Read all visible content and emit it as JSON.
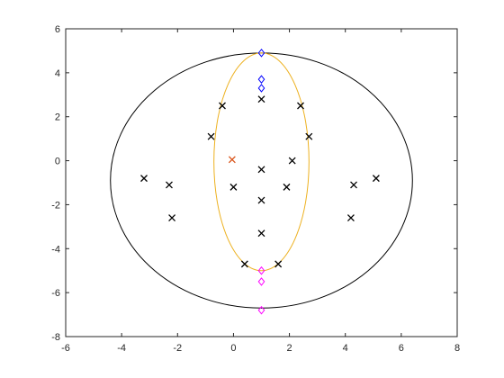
{
  "chart_data": {
    "type": "scatter",
    "title": "",
    "xlabel": "",
    "ylabel": "",
    "xlim": [
      -6,
      8
    ],
    "ylim": [
      -8,
      6
    ],
    "xticks": [
      "-6",
      "-4",
      "-2",
      "0",
      "2",
      "4",
      "6",
      "8"
    ],
    "yticks": [
      "-8",
      "-6",
      "-4",
      "-2",
      "0",
      "2",
      "4",
      "6"
    ],
    "grid": false,
    "legend": "none",
    "series": [
      {
        "marker": "x",
        "color": "#000000",
        "points": [
          [
            -3.2,
            -0.8
          ],
          [
            -2.3,
            -1.1
          ],
          [
            -2.2,
            -2.6
          ],
          [
            -0.4,
            2.5
          ],
          [
            -0.8,
            1.1
          ],
          [
            0.0,
            -1.2
          ],
          [
            1.0,
            2.8
          ],
          [
            1.0,
            -0.4
          ],
          [
            1.0,
            -1.8
          ],
          [
            1.0,
            -3.3
          ],
          [
            2.4,
            2.5
          ],
          [
            2.7,
            1.1
          ],
          [
            2.1,
            0.0
          ],
          [
            1.9,
            -1.2
          ],
          [
            4.3,
            -1.1
          ],
          [
            4.2,
            -2.6
          ],
          [
            5.1,
            -0.8
          ],
          [
            0.4,
            -4.7
          ],
          [
            1.6,
            -4.7
          ]
        ]
      },
      {
        "marker": "x",
        "color": "#d95319",
        "points": [
          [
            -0.05,
            0.05
          ]
        ]
      },
      {
        "marker": "diamond",
        "color": "#0000ff",
        "points": [
          [
            1.0,
            4.9
          ],
          [
            1.0,
            3.7
          ],
          [
            1.0,
            3.3
          ]
        ]
      },
      {
        "marker": "diamond",
        "color": "#ff00ff",
        "points": [
          [
            1.0,
            -5.0
          ],
          [
            1.0,
            -5.5
          ],
          [
            1.0,
            -6.8
          ]
        ]
      }
    ],
    "ellipses": [
      {
        "color": "#000000",
        "center": [
          1.0,
          -0.9
        ],
        "rx": 5.4,
        "ry": 5.8
      },
      {
        "color": "#edb120",
        "center": [
          1.0,
          -0.05
        ],
        "rx": 1.7,
        "ry": 4.95
      }
    ]
  }
}
